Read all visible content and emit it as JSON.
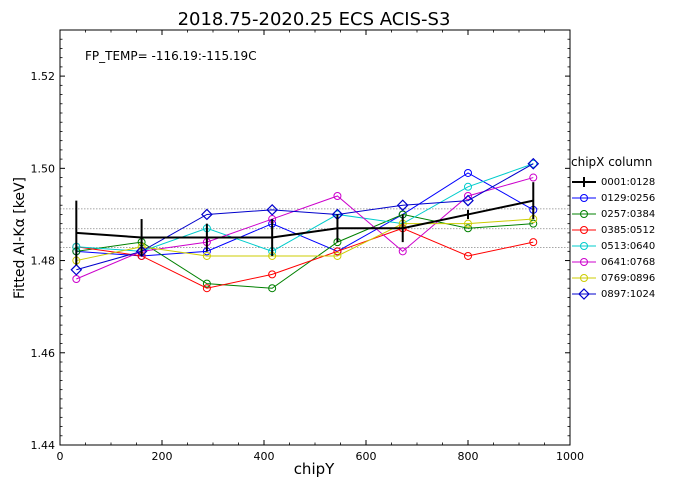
{
  "chart_data": {
    "type": "line",
    "title": "2018.75-2020.25   ECS   ACIS-S3",
    "annotation": "FP_TEMP= -116.19:-115.19C",
    "xlabel": "chipY",
    "ylabel": "Fitted Al-Kα [keV]",
    "xlim": [
      0,
      1000
    ],
    "ylim": [
      1.44,
      1.53
    ],
    "xticks": [
      0,
      200,
      400,
      600,
      800,
      1000
    ],
    "yticks": [
      1.44,
      1.46,
      1.48,
      1.5,
      1.52
    ],
    "grid": false,
    "reference_lines": [
      1.4828,
      1.4869,
      1.4912
    ],
    "legend_title": "chipX column",
    "legend_position": "right, outside plot",
    "x": [
      32,
      160,
      288,
      416,
      544,
      672,
      800,
      928
    ],
    "series": [
      {
        "name": "0001:0128",
        "color": "#000000",
        "marker": "errorbar",
        "values": [
          1.486,
          1.485,
          1.485,
          1.485,
          1.487,
          1.487,
          1.49,
          1.493
        ],
        "errors": [
          0.007,
          0.004,
          0.003,
          0.004,
          0.003,
          0.003,
          0.001,
          0.004
        ]
      },
      {
        "name": "0129:0256",
        "color": "#0000ff",
        "marker": "circle",
        "values": [
          1.482,
          1.481,
          1.482,
          1.488,
          1.482,
          1.49,
          1.499,
          1.491
        ]
      },
      {
        "name": "0257:0384",
        "color": "#008000",
        "marker": "circle",
        "values": [
          1.482,
          1.484,
          1.475,
          1.474,
          1.484,
          1.49,
          1.487,
          1.488
        ]
      },
      {
        "name": "0385:0512",
        "color": "#ff0000",
        "marker": "circle",
        "values": [
          1.483,
          1.481,
          1.474,
          1.477,
          1.482,
          1.487,
          1.481,
          1.484
        ]
      },
      {
        "name": "0513:0640",
        "color": "#00cccc",
        "marker": "circle",
        "values": [
          1.483,
          1.482,
          1.487,
          1.482,
          1.49,
          1.488,
          1.496,
          1.501
        ]
      },
      {
        "name": "0641:0768",
        "color": "#cc00cc",
        "marker": "circle",
        "values": [
          1.476,
          1.482,
          1.484,
          1.489,
          1.494,
          1.482,
          1.494,
          1.498
        ]
      },
      {
        "name": "0769:0896",
        "color": "#cccc00",
        "marker": "circle",
        "values": [
          1.48,
          1.483,
          1.481,
          1.481,
          1.481,
          1.488,
          1.488,
          1.489
        ]
      },
      {
        "name": "0897:1024",
        "color": "#0000cc",
        "marker": "diamond",
        "values": [
          1.478,
          1.482,
          1.49,
          1.491,
          1.49,
          1.492,
          1.493,
          1.501
        ]
      }
    ]
  }
}
